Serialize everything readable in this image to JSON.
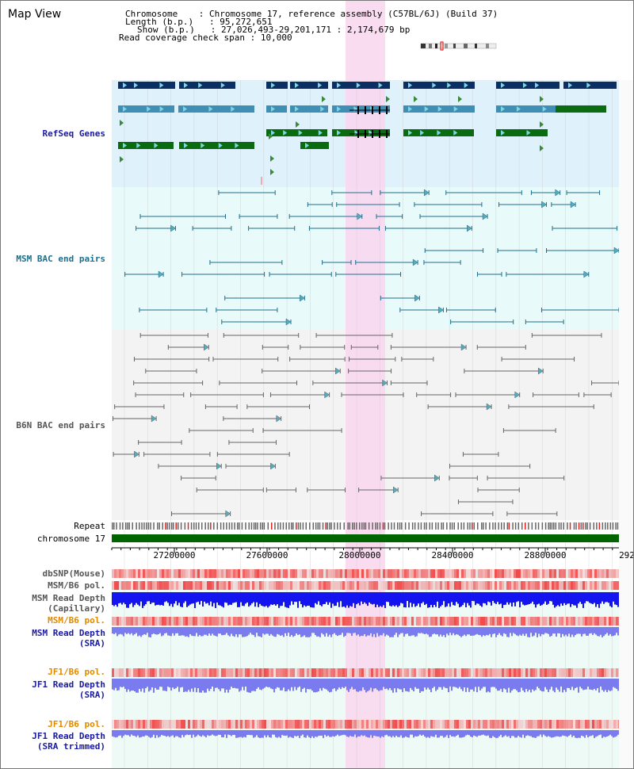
{
  "view_title": "Map View",
  "info": {
    "chromosome_label": "Chromosome",
    "chromosome_value": "Chromosome 17, reference assembly (C57BL/6J) (Build 37)",
    "length_label": "Length (b.p.)",
    "length_value": "95,272,651",
    "show_label": "Show (b.p.)",
    "show_value": "27,026,493-29,201,171 : 2,174,679 bp",
    "coverage_label": "Read coverage check span",
    "coverage_value": "10,000"
  },
  "tracks": {
    "refseq": "RefSeq Genes",
    "msm_bac": "MSM BAC end pairs",
    "b6n_bac": "B6N BAC end pairs",
    "repeat": "Repeat",
    "chromosome": "chromosome 17",
    "dbsnp": "dbSNP(Mouse)",
    "msm_b6_pol": "MSM/B6 pol.",
    "msm_read_depth_cap": "MSM Read Depth",
    "msm_read_depth_cap_sub": "(Capillary)",
    "msm_b6_pol_2": "MSM/B6 pol.",
    "msm_read_depth_sra": "MSM Read Depth",
    "msm_read_depth_sra_sub": "(SRA)",
    "jf1_b6_pol": "JF1/B6 pol.",
    "jf1_read_depth_sra": "JF1 Read Depth",
    "jf1_read_depth_sra_sub": "(SRA)",
    "jf1_b6_pol_2": "JF1/B6 pol.",
    "jf1_read_depth_trim": "JF1 Read Depth",
    "jf1_read_depth_trim_sub": "(SRA trimmed)"
  },
  "axis": {
    "ticks": [
      "27200000",
      "27600000",
      "28000000",
      "28400000",
      "28800000",
      "292"
    ]
  },
  "colors": {
    "refseq_bg": "#dff1fb",
    "msm_bac_bg": "#e8fafa",
    "b6n_bac_bg": "#f3f3f3",
    "highlight": "#f9d6ee",
    "chromosome_bar": "#006400",
    "navy_gene": "#0c2f63",
    "steel_gene": "#3e8eb5",
    "green_gene": "#0b6b10",
    "depth_blue": "#1414f0",
    "depth_lavender": "#7b7bf0"
  }
}
